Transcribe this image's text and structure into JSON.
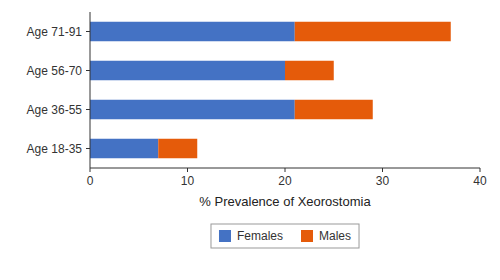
{
  "chart_data": {
    "type": "bar",
    "orientation": "horizontal",
    "stacked": true,
    "categories": [
      "Age 18-35",
      "Age 36-55",
      "Age 56-70",
      "Age 71-91"
    ],
    "series": [
      {
        "name": "Females",
        "color": "#4472C4",
        "values": [
          7,
          21,
          20,
          21
        ]
      },
      {
        "name": "Males",
        "color": "#E55B0A",
        "values": [
          4,
          8,
          5,
          16
        ]
      }
    ],
    "xlabel": "% Prevalence of Xeorostomia",
    "xlim": [
      0,
      40
    ],
    "xticks": [
      0,
      10,
      20,
      30,
      40
    ],
    "grid": false,
    "legend": "bottom"
  }
}
